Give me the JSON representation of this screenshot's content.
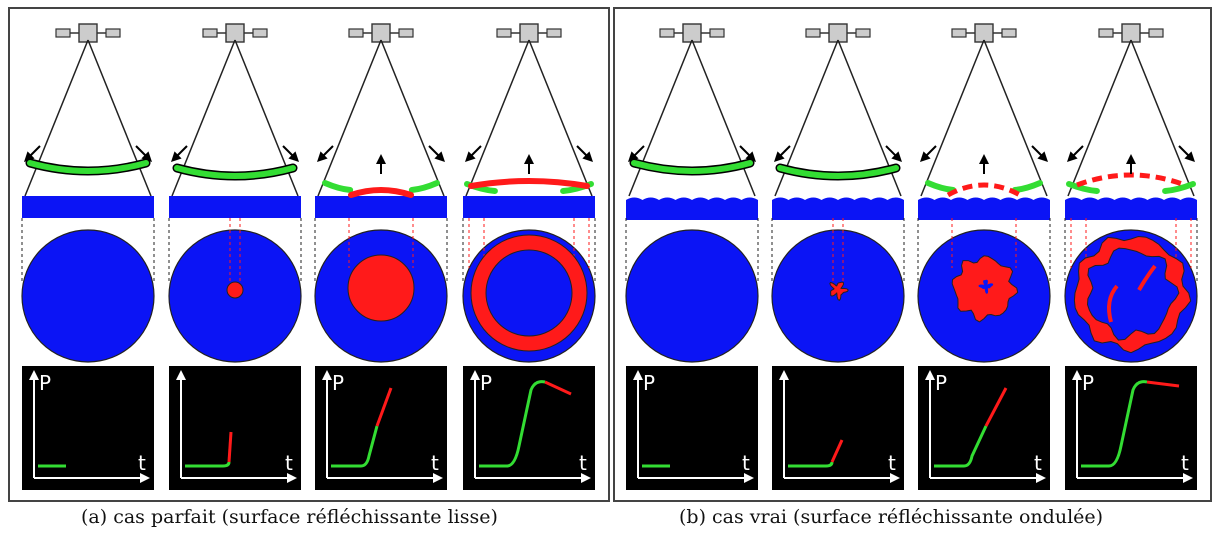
{
  "panels": [
    {
      "id": "a",
      "caption": "(a) cas parfait (surface réfléchissante lisse)",
      "surface": "smooth"
    },
    {
      "id": "b",
      "caption": "(b) cas vrai (surface réfléchissante ondulée)",
      "surface": "wavy"
    }
  ],
  "graph_labels": {
    "y_axis": "P",
    "x_axis": "t"
  },
  "stages": [
    {
      "step": 1,
      "wave": "green",
      "footprint": "none",
      "show_p_label": true,
      "show_up_arrow": false
    },
    {
      "step": 2,
      "wave": "green",
      "footprint": "dot",
      "show_p_label": false,
      "show_up_arrow": false
    },
    {
      "step": 3,
      "wave": "green-red",
      "footprint": "disc",
      "show_p_label": true,
      "show_up_arrow": true
    },
    {
      "step": 4,
      "wave": "green-red",
      "footprint": "annulus",
      "show_p_label": true,
      "show_up_arrow": true
    }
  ],
  "colors": {
    "water": "#0b14f5",
    "reflect": "#ff1a1a",
    "incident": "#33dd33",
    "graph_bg": "#000000",
    "frame": "#444444"
  }
}
